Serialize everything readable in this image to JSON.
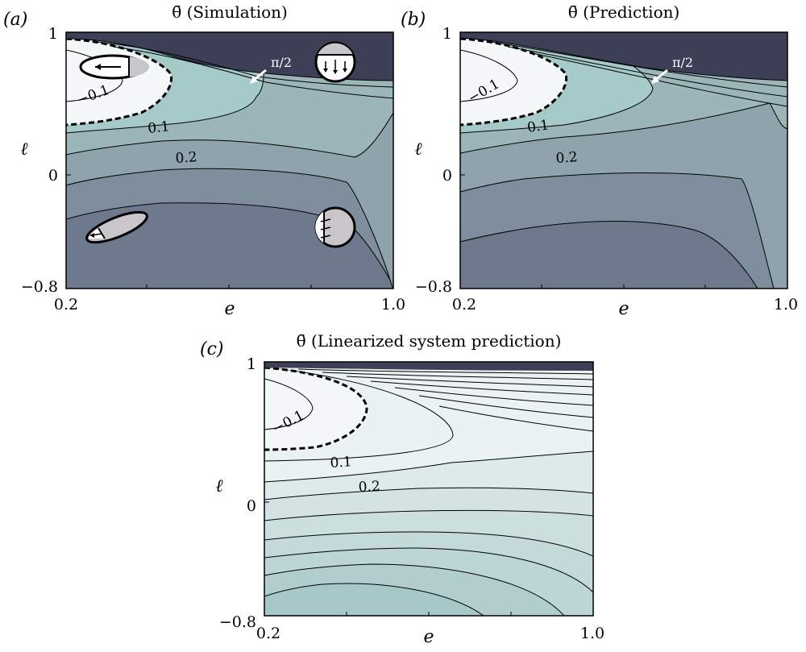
{
  "chart_data": [
    {
      "type": "contour",
      "panel": "(a)",
      "title": "θ̄ (Simulation)",
      "xlabel": "e",
      "ylabel": "ℓ",
      "xlim": [
        0.2,
        1.0
      ],
      "ylim": [
        -0.8,
        1.0
      ],
      "x_tick_labels": [
        "0.2",
        "1.0"
      ],
      "y_tick_labels": [
        "1",
        "0",
        "−0.8"
      ],
      "contour_labels": [
        "−0.1",
        "0.1",
        "0.2"
      ],
      "annotation": "π/2",
      "dashed_contour_level": 0,
      "grid": false
    },
    {
      "type": "contour",
      "panel": "(b)",
      "title": "θ̄ (Prediction)",
      "xlabel": "e",
      "ylabel": "ℓ",
      "xlim": [
        0.2,
        1.0
      ],
      "ylim": [
        -0.8,
        1.0
      ],
      "x_tick_labels": [
        "0.2",
        "1.0"
      ],
      "y_tick_labels": [
        "1",
        "0",
        "−0.8"
      ],
      "contour_labels": [
        "−0.1",
        "0.1",
        "0.2"
      ],
      "annotation": "π/2",
      "dashed_contour_level": 0,
      "grid": false
    },
    {
      "type": "contour",
      "panel": "(c)",
      "title": "θ̄ (Linearized system prediction)",
      "xlabel": "e",
      "ylabel": "ℓ",
      "xlim": [
        0.2,
        1.0
      ],
      "ylim": [
        -0.8,
        1.0
      ],
      "x_tick_labels": [
        "0.2",
        "1.0"
      ],
      "y_tick_labels": [
        "1",
        "0",
        "−0.8"
      ],
      "contour_labels": [
        "−0.1",
        "0.1",
        "0.2"
      ],
      "dashed_contour_level": 0,
      "grid": false
    }
  ],
  "colors": {
    "top_band": "#3c3f56",
    "white_region": "#f4f8f8",
    "teal_light": "#a6c9c9",
    "teal_mid": "#9bb5b8",
    "slate_mid": "#8ea3ab",
    "slate_low": "#7f8e9c",
    "slate_dark": "#6e798e",
    "lin_light": "#eaf2f2",
    "lin_mid": "#d3e3e3",
    "lin_teal": "#bcd5d5",
    "lin_teal2": "#a7c8c8"
  }
}
